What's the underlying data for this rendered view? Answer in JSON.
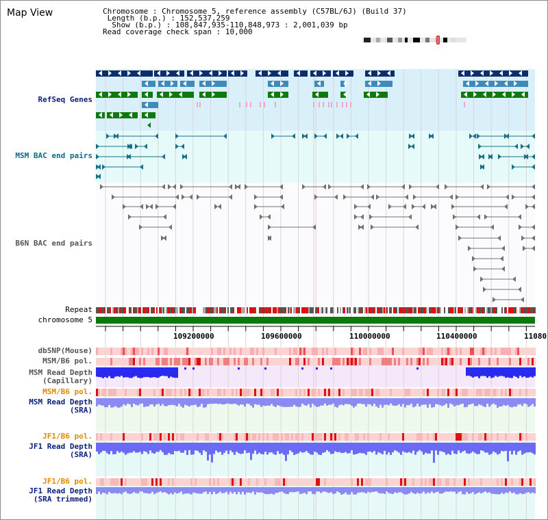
{
  "header": {
    "title": "Map View",
    "chromosome_label": "Chromosome",
    "chromosome_value": "Chromosome 5, reference assembly (C57BL/6J) (Build 37)",
    "length_label": "Length (b.p.)",
    "length_value": "152,537,259",
    "show_label": "Show (b.p.)",
    "show_value": "108,847,935-110,848,973 : 2,001,039 bp",
    "coverage_label": "Read coverage check span",
    "coverage_value": "10,000"
  },
  "tracks": {
    "refseq": "RefSeq Genes",
    "msm_bac": "MSM BAC end pairs",
    "b6n_bac": "B6N BAC end pairs",
    "repeat": "Repeat",
    "chromosome": "chromosome 5",
    "dbsnp": "dbSNP(Mouse)",
    "msm_b6_pol": "MSM/B6 pol.",
    "msm_depth_cap_1": "MSM Read Depth",
    "msm_depth_cap_2": "(Capillary)",
    "msm_b6_pol_sra": "MSM/B6 pol.",
    "msm_depth_sra_1": "MSM Read Depth",
    "msm_depth_sra_2": "(SRA)",
    "jf1_b6_pol": "JF1/B6 pol.",
    "jf1_depth_1": "JF1 Read Depth",
    "jf1_depth_2": "(SRA)",
    "jf1_b6_pol_trim": "JF1/B6 pol.",
    "jf1_trim_1": "JF1 Read Depth",
    "jf1_trim_2": "(SRA trimmed)"
  },
  "axis": {
    "ticks": [
      "109200000",
      "109600000",
      "110000000",
      "110400000",
      "11080"
    ]
  },
  "colors": {
    "refseq_bg": "#d9f0fb",
    "msm_bg": "#e6fafa",
    "gene_navy": "#0d2d6b",
    "gene_blue": "#3e8ab8",
    "gene_green": "#0e7a0e",
    "gene_pink": "#f4a6c6",
    "bac_teal": "#1a6f86",
    "bac_gray": "#707070",
    "chromosome_green": "#0a7a0a",
    "depth_blue": "#3b3bff"
  }
}
